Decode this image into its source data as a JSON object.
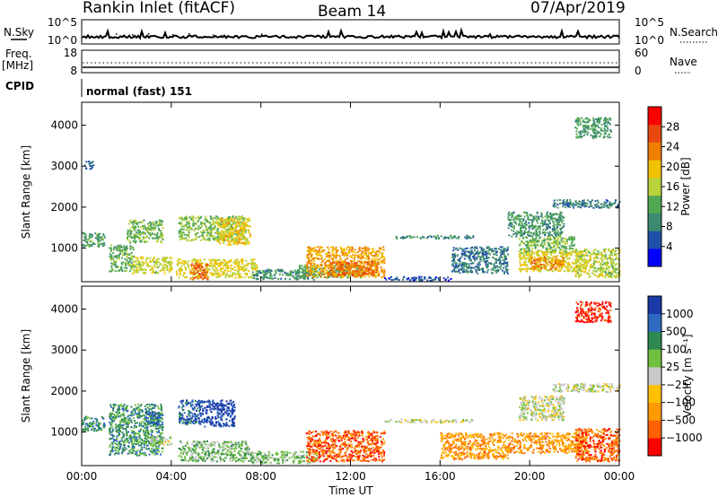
{
  "header": {
    "station": "Rankin Inlet (fitACF)",
    "beam": "Beam 14",
    "date": "07/Apr/2019"
  },
  "noise_panel": {
    "left_label": "N.Sky",
    "right_label": "N.Search",
    "left_ticks": [
      "10^5",
      "10^0"
    ],
    "right_ticks": [
      "10^5",
      "10^0"
    ]
  },
  "freq_panel": {
    "left_label_top": "Freq.",
    "left_label_bottom": "[MHz]",
    "right_label": "Nave",
    "left_ticks": [
      "18",
      "8"
    ],
    "right_ticks": [
      "60",
      "0"
    ]
  },
  "cpid": {
    "label": "CPID",
    "mode_text": "normal (fast) 151"
  },
  "x_axis": {
    "label": "Time UT",
    "ticks": [
      "00:00",
      "04:00",
      "08:00",
      "12:00",
      "16:00",
      "20:00",
      "00:00"
    ]
  },
  "colors": {
    "power": [
      "#0000ff",
      "#1f4fa8",
      "#3c8a72",
      "#52a852",
      "#b8d23a",
      "#f2c200",
      "#f07f00",
      "#e84810",
      "#ff0000"
    ],
    "velocity": [
      "#ff0000",
      "#ff6000",
      "#ff9a00",
      "#ffc000",
      "#c8c8c8",
      "#70c040",
      "#2e8a50",
      "#2f6ac0",
      "#1b3aa8"
    ]
  },
  "chart_data": [
    {
      "type": "heatmap",
      "panel": "power",
      "ylabel": "Slant Range [km]",
      "xlabel": "Time UT",
      "xlim": [
        0,
        24
      ],
      "ylim": [
        180,
        4560
      ],
      "yticks": [
        "1000",
        "2000",
        "3000",
        "4000"
      ],
      "colorbar": {
        "label": "Power [dB]",
        "ticks": [
          "4",
          "8",
          "12",
          "16",
          "20",
          "24",
          "28"
        ],
        "range": [
          0,
          32
        ]
      },
      "regions": [
        {
          "t": [
            0.0,
            1.0
          ],
          "r": [
            1050,
            1400
          ],
          "v": 13
        },
        {
          "t": [
            1.2,
            2.3
          ],
          "r": [
            450,
            1100
          ],
          "v": 14
        },
        {
          "t": [
            2.0,
            3.6
          ],
          "r": [
            1150,
            1700
          ],
          "v": 15
        },
        {
          "t": [
            2.2,
            4.0
          ],
          "r": [
            400,
            800
          ],
          "v": 19
        },
        {
          "t": [
            4.3,
            7.3
          ],
          "r": [
            1200,
            1800
          ],
          "v": 16
        },
        {
          "t": [
            4.2,
            7.8
          ],
          "r": [
            300,
            750
          ],
          "v": 20
        },
        {
          "t": [
            4.8,
            5.6
          ],
          "r": [
            250,
            650
          ],
          "v": 28
        },
        {
          "t": [
            6.0,
            7.5
          ],
          "r": [
            1100,
            1750
          ],
          "v": 21
        },
        {
          "t": [
            7.6,
            10.5
          ],
          "r": [
            250,
            500
          ],
          "v": 11
        },
        {
          "t": [
            9.5,
            12.5
          ],
          "r": [
            300,
            600
          ],
          "v": 14
        },
        {
          "t": [
            10.0,
            13.5
          ],
          "r": [
            300,
            1050
          ],
          "v": 24
        },
        {
          "t": [
            11.0,
            13.2
          ],
          "r": [
            350,
            700
          ],
          "v": 28
        },
        {
          "t": [
            13.5,
            16.5
          ],
          "r": [
            220,
            320
          ],
          "v": 6
        },
        {
          "t": [
            14.0,
            17.5
          ],
          "r": [
            1250,
            1330
          ],
          "v": 10
        },
        {
          "t": [
            16.5,
            19.0
          ],
          "r": [
            400,
            1050
          ],
          "v": 9
        },
        {
          "t": [
            19.0,
            21.5
          ],
          "r": [
            1300,
            1900
          ],
          "v": 11
        },
        {
          "t": [
            19.5,
            22.0
          ],
          "r": [
            900,
            1300
          ],
          "v": 15
        },
        {
          "t": [
            19.5,
            22.5
          ],
          "r": [
            450,
            950
          ],
          "v": 20
        },
        {
          "t": [
            20.0,
            21.5
          ],
          "r": [
            500,
            800
          ],
          "v": 26
        },
        {
          "t": [
            22.0,
            24.0
          ],
          "r": [
            300,
            1000
          ],
          "v": 18
        },
        {
          "t": [
            21.0,
            24.0
          ],
          "r": [
            2000,
            2200
          ],
          "v": 9
        },
        {
          "t": [
            0.1,
            0.5
          ],
          "r": [
            2950,
            3150
          ],
          "v": 8
        },
        {
          "t": [
            22.0,
            23.6
          ],
          "r": [
            3700,
            4200
          ],
          "v": 12
        }
      ]
    },
    {
      "type": "heatmap",
      "panel": "velocity",
      "ylabel": "Slant Range [km]",
      "xlabel": "Time UT",
      "xlim": [
        0,
        24
      ],
      "ylim": [
        180,
        4560
      ],
      "yticks": [
        "1000",
        "2000",
        "3000",
        "4000"
      ],
      "colorbar": {
        "label": "Velocity [m s⁻¹]",
        "ticks": [
          "1000",
          "500",
          "100",
          "25",
          "−25",
          "−100",
          "−500",
          "−1000"
        ]
      },
      "regions": [
        {
          "t": [
            0.0,
            1.0
          ],
          "r": [
            1050,
            1400
          ],
          "v": 6
        },
        {
          "t": [
            1.2,
            3.6
          ],
          "r": [
            450,
            1700
          ],
          "v": 6
        },
        {
          "t": [
            3.0,
            4.0
          ],
          "r": [
            700,
            900
          ],
          "v": 4
        },
        {
          "t": [
            2.8,
            3.5
          ],
          "r": [
            1200,
            1500
          ],
          "v": 7
        },
        {
          "t": [
            4.3,
            5.3
          ],
          "r": [
            1200,
            1800
          ],
          "v": 7
        },
        {
          "t": [
            5.2,
            6.8
          ],
          "r": [
            1150,
            1800
          ],
          "v": 8
        },
        {
          "t": [
            4.3,
            7.5
          ],
          "r": [
            300,
            800
          ],
          "v": 5
        },
        {
          "t": [
            7.5,
            10.5
          ],
          "r": [
            250,
            550
          ],
          "v": 5
        },
        {
          "t": [
            10.0,
            13.5
          ],
          "r": [
            300,
            1050
          ],
          "v": 1
        },
        {
          "t": [
            13.5,
            17.5
          ],
          "r": [
            1250,
            1330
          ],
          "v": 4
        },
        {
          "t": [
            16.0,
            19.0
          ],
          "r": [
            350,
            1000
          ],
          "v": 2
        },
        {
          "t": [
            19.0,
            22.5
          ],
          "r": [
            500,
            1000
          ],
          "v": 2
        },
        {
          "t": [
            19.5,
            21.5
          ],
          "r": [
            1300,
            1900
          ],
          "v": 4
        },
        {
          "t": [
            22.0,
            24.0
          ],
          "r": [
            300,
            1100
          ],
          "v": 1
        },
        {
          "t": [
            21.0,
            24.0
          ],
          "r": [
            2000,
            2200
          ],
          "v": 4
        },
        {
          "t": [
            22.0,
            23.6
          ],
          "r": [
            3700,
            4200
          ],
          "v": 0
        }
      ]
    }
  ]
}
